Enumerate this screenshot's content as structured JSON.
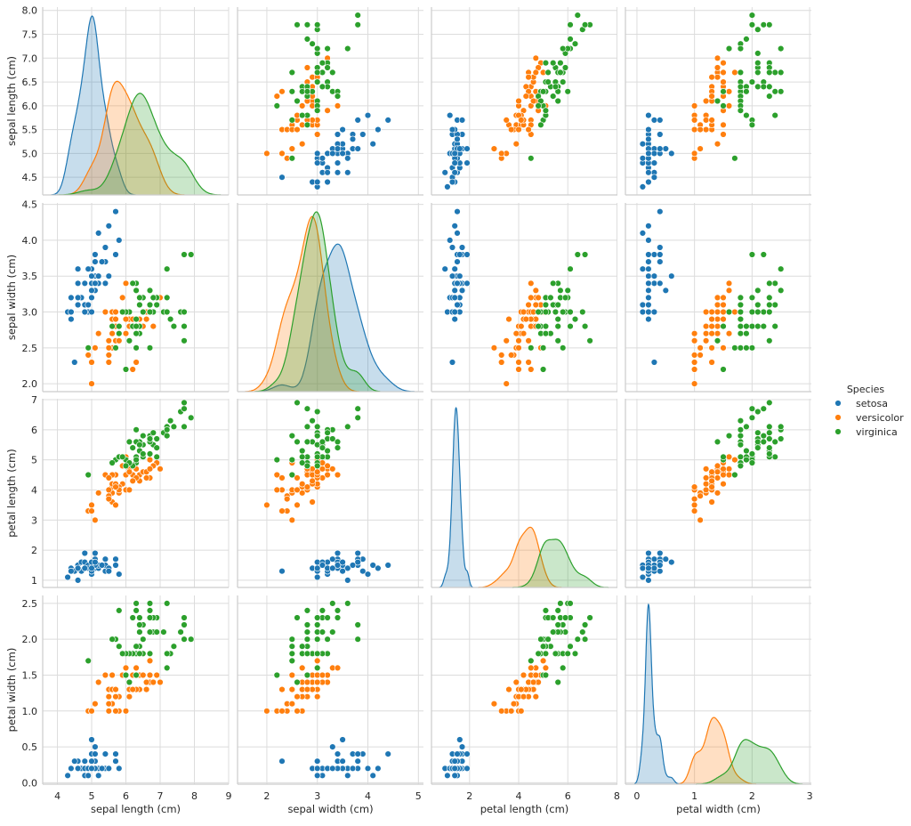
{
  "chart_data": {
    "type": "scatter_matrix",
    "diag_kind": "kde",
    "grid": true,
    "variables": [
      {
        "label": "sepal length (cm)",
        "xticks": [
          "4",
          "5",
          "6",
          "7",
          "8",
          "9"
        ],
        "xtick_values": [
          4,
          5,
          6,
          7,
          8,
          9
        ],
        "xlim": [
          3.57,
          9.0
        ],
        "yticks": [
          "4.5",
          "5.0",
          "5.5",
          "6.0",
          "6.5",
          "7.0",
          "7.5",
          "8.0"
        ],
        "ytick_values": [
          4.5,
          5.0,
          5.5,
          6.0,
          6.5,
          7.0,
          7.5,
          8.0
        ],
        "ylim": [
          4.13,
          8.07
        ]
      },
      {
        "label": "sepal width (cm)",
        "xticks": [
          "2",
          "3",
          "4",
          "5"
        ],
        "xtick_values": [
          2,
          3,
          4,
          5
        ],
        "xlim": [
          1.42,
          5.1
        ],
        "yticks": [
          "2.0",
          "2.5",
          "3.0",
          "3.5",
          "4.0",
          "4.5"
        ],
        "ytick_values": [
          2.0,
          2.5,
          3.0,
          3.5,
          4.0,
          4.5
        ],
        "ylim": [
          1.89,
          4.52
        ]
      },
      {
        "label": "petal length (cm)",
        "xticks": [
          "2",
          "4",
          "6",
          "8"
        ],
        "xtick_values": [
          2,
          4,
          6,
          8
        ],
        "xlim": [
          0.45,
          8.02
        ],
        "yticks": [
          "1",
          "2",
          "3",
          "4",
          "5",
          "6",
          "7"
        ],
        "ytick_values": [
          1,
          2,
          3,
          4,
          5,
          6,
          7
        ],
        "ylim": [
          0.76,
          7.03
        ]
      },
      {
        "label": "petal width (cm)",
        "xticks": [
          "0",
          "1",
          "2",
          "3"
        ],
        "xtick_values": [
          0,
          1,
          2,
          3
        ],
        "xlim": [
          -0.2,
          3.03
        ],
        "yticks": [
          "0.0",
          "0.5",
          "1.0",
          "1.5",
          "2.0",
          "2.5"
        ],
        "ytick_values": [
          0.0,
          0.5,
          1.0,
          1.5,
          2.0,
          2.5
        ],
        "ylim": [
          -0.02,
          2.61
        ]
      }
    ],
    "legend": {
      "title": "Species",
      "placement": "right"
    },
    "series": [
      {
        "name": "setosa",
        "color": "#1f77b4",
        "rows": [
          [
            5.1,
            3.5,
            1.4,
            0.2
          ],
          [
            4.9,
            3.0,
            1.4,
            0.2
          ],
          [
            4.7,
            3.2,
            1.3,
            0.2
          ],
          [
            4.6,
            3.1,
            1.5,
            0.2
          ],
          [
            5.0,
            3.6,
            1.4,
            0.2
          ],
          [
            5.4,
            3.9,
            1.7,
            0.4
          ],
          [
            4.6,
            3.4,
            1.4,
            0.3
          ],
          [
            5.0,
            3.4,
            1.5,
            0.2
          ],
          [
            4.4,
            2.9,
            1.4,
            0.2
          ],
          [
            4.9,
            3.1,
            1.5,
            0.1
          ],
          [
            5.4,
            3.7,
            1.5,
            0.2
          ],
          [
            4.8,
            3.4,
            1.6,
            0.2
          ],
          [
            4.8,
            3.0,
            1.4,
            0.1
          ],
          [
            4.3,
            3.0,
            1.1,
            0.1
          ],
          [
            5.8,
            4.0,
            1.2,
            0.2
          ],
          [
            5.7,
            4.4,
            1.5,
            0.4
          ],
          [
            5.4,
            3.9,
            1.3,
            0.4
          ],
          [
            5.1,
            3.5,
            1.4,
            0.3
          ],
          [
            5.7,
            3.8,
            1.7,
            0.3
          ],
          [
            5.1,
            3.8,
            1.5,
            0.3
          ],
          [
            5.4,
            3.4,
            1.7,
            0.2
          ],
          [
            5.1,
            3.7,
            1.5,
            0.4
          ],
          [
            4.6,
            3.6,
            1.0,
            0.2
          ],
          [
            5.1,
            3.3,
            1.7,
            0.5
          ],
          [
            4.8,
            3.4,
            1.9,
            0.2
          ],
          [
            5.0,
            3.0,
            1.6,
            0.2
          ],
          [
            5.0,
            3.4,
            1.6,
            0.4
          ],
          [
            5.2,
            3.5,
            1.5,
            0.2
          ],
          [
            5.2,
            3.4,
            1.4,
            0.2
          ],
          [
            4.7,
            3.2,
            1.6,
            0.2
          ],
          [
            4.8,
            3.1,
            1.6,
            0.2
          ],
          [
            5.4,
            3.4,
            1.5,
            0.4
          ],
          [
            5.2,
            4.1,
            1.5,
            0.1
          ],
          [
            5.5,
            4.2,
            1.4,
            0.2
          ],
          [
            4.9,
            3.1,
            1.5,
            0.2
          ],
          [
            5.0,
            3.2,
            1.2,
            0.2
          ],
          [
            5.5,
            3.5,
            1.3,
            0.2
          ],
          [
            4.9,
            3.6,
            1.4,
            0.1
          ],
          [
            4.4,
            3.0,
            1.3,
            0.2
          ],
          [
            5.1,
            3.4,
            1.5,
            0.2
          ],
          [
            5.0,
            3.5,
            1.3,
            0.3
          ],
          [
            4.5,
            2.3,
            1.3,
            0.3
          ],
          [
            4.4,
            3.2,
            1.3,
            0.2
          ],
          [
            5.0,
            3.5,
            1.6,
            0.6
          ],
          [
            5.1,
            3.8,
            1.9,
            0.4
          ],
          [
            4.8,
            3.0,
            1.4,
            0.3
          ],
          [
            5.1,
            3.8,
            1.6,
            0.2
          ],
          [
            4.6,
            3.2,
            1.4,
            0.2
          ],
          [
            5.3,
            3.7,
            1.5,
            0.2
          ],
          [
            5.0,
            3.3,
            1.4,
            0.2
          ]
        ]
      },
      {
        "name": "versicolor",
        "color": "#ff7f0e",
        "rows": [
          [
            7.0,
            3.2,
            4.7,
            1.4
          ],
          [
            6.4,
            3.2,
            4.5,
            1.5
          ],
          [
            6.9,
            3.1,
            4.9,
            1.5
          ],
          [
            5.5,
            2.3,
            4.0,
            1.3
          ],
          [
            6.5,
            2.8,
            4.6,
            1.5
          ],
          [
            5.7,
            2.8,
            4.5,
            1.3
          ],
          [
            6.3,
            3.3,
            4.7,
            1.6
          ],
          [
            4.9,
            2.4,
            3.3,
            1.0
          ],
          [
            6.6,
            2.9,
            4.6,
            1.3
          ],
          [
            5.2,
            2.7,
            3.9,
            1.4
          ],
          [
            5.0,
            2.0,
            3.5,
            1.0
          ],
          [
            5.9,
            3.0,
            4.2,
            1.5
          ],
          [
            6.0,
            2.2,
            4.0,
            1.0
          ],
          [
            6.1,
            2.9,
            4.7,
            1.4
          ],
          [
            5.6,
            2.9,
            3.6,
            1.3
          ],
          [
            6.7,
            3.1,
            4.4,
            1.4
          ],
          [
            5.6,
            3.0,
            4.5,
            1.5
          ],
          [
            5.8,
            2.7,
            4.1,
            1.0
          ],
          [
            6.2,
            2.2,
            4.5,
            1.5
          ],
          [
            5.6,
            2.5,
            3.9,
            1.1
          ],
          [
            5.9,
            3.2,
            4.8,
            1.8
          ],
          [
            6.1,
            2.8,
            4.0,
            1.3
          ],
          [
            6.3,
            2.5,
            4.9,
            1.5
          ],
          [
            6.1,
            2.8,
            4.7,
            1.2
          ],
          [
            6.4,
            2.9,
            4.3,
            1.3
          ],
          [
            6.6,
            3.0,
            4.4,
            1.4
          ],
          [
            6.8,
            2.8,
            4.8,
            1.4
          ],
          [
            6.7,
            3.0,
            5.0,
            1.7
          ],
          [
            6.0,
            2.9,
            4.5,
            1.5
          ],
          [
            5.7,
            2.6,
            3.5,
            1.0
          ],
          [
            5.5,
            2.4,
            3.8,
            1.1
          ],
          [
            5.5,
            2.4,
            3.7,
            1.0
          ],
          [
            5.8,
            2.7,
            3.9,
            1.2
          ],
          [
            6.0,
            2.7,
            5.1,
            1.6
          ],
          [
            5.4,
            3.0,
            4.5,
            1.5
          ],
          [
            6.0,
            3.4,
            4.5,
            1.6
          ],
          [
            6.7,
            3.1,
            4.7,
            1.5
          ],
          [
            6.3,
            2.3,
            4.4,
            1.3
          ],
          [
            5.6,
            3.0,
            4.1,
            1.3
          ],
          [
            5.5,
            2.5,
            4.0,
            1.3
          ],
          [
            5.5,
            2.6,
            4.4,
            1.2
          ],
          [
            6.1,
            3.0,
            4.6,
            1.4
          ],
          [
            5.8,
            2.6,
            4.0,
            1.2
          ],
          [
            5.0,
            2.3,
            3.3,
            1.0
          ],
          [
            5.6,
            2.7,
            4.2,
            1.3
          ],
          [
            5.7,
            3.0,
            4.2,
            1.2
          ],
          [
            5.7,
            2.9,
            4.2,
            1.3
          ],
          [
            6.2,
            2.9,
            4.3,
            1.3
          ],
          [
            5.1,
            2.5,
            3.0,
            1.1
          ],
          [
            5.7,
            2.8,
            4.1,
            1.3
          ]
        ]
      },
      {
        "name": "virginica",
        "color": "#2ca02c",
        "rows": [
          [
            6.3,
            3.3,
            6.0,
            2.5
          ],
          [
            5.8,
            2.7,
            5.1,
            1.9
          ],
          [
            7.1,
            3.0,
            5.9,
            2.1
          ],
          [
            6.3,
            2.9,
            5.6,
            1.8
          ],
          [
            6.5,
            3.0,
            5.8,
            2.2
          ],
          [
            7.6,
            3.0,
            6.6,
            2.1
          ],
          [
            4.9,
            2.5,
            4.5,
            1.7
          ],
          [
            7.3,
            2.9,
            6.3,
            1.8
          ],
          [
            6.7,
            2.5,
            5.8,
            1.8
          ],
          [
            7.2,
            3.6,
            6.1,
            2.5
          ],
          [
            6.5,
            3.2,
            5.1,
            2.0
          ],
          [
            6.4,
            2.7,
            5.3,
            1.9
          ],
          [
            6.8,
            3.0,
            5.5,
            2.1
          ],
          [
            5.7,
            2.5,
            5.0,
            2.0
          ],
          [
            5.8,
            2.8,
            5.1,
            2.4
          ],
          [
            6.4,
            3.2,
            5.3,
            2.3
          ],
          [
            6.5,
            3.0,
            5.5,
            1.8
          ],
          [
            7.7,
            3.8,
            6.7,
            2.2
          ],
          [
            7.7,
            2.6,
            6.9,
            2.3
          ],
          [
            6.0,
            2.2,
            5.0,
            1.5
          ],
          [
            6.9,
            3.2,
            5.7,
            2.3
          ],
          [
            5.6,
            2.8,
            4.9,
            2.0
          ],
          [
            7.7,
            2.8,
            6.7,
            2.0
          ],
          [
            6.3,
            2.7,
            4.9,
            1.8
          ],
          [
            6.7,
            3.3,
            5.7,
            2.1
          ],
          [
            7.2,
            3.2,
            6.0,
            1.8
          ],
          [
            6.2,
            2.8,
            4.8,
            1.8
          ],
          [
            6.1,
            3.0,
            4.9,
            1.8
          ],
          [
            6.4,
            2.8,
            5.6,
            2.1
          ],
          [
            7.2,
            3.0,
            5.8,
            1.6
          ],
          [
            7.4,
            2.8,
            6.1,
            1.9
          ],
          [
            7.9,
            3.8,
            6.4,
            2.0
          ],
          [
            6.4,
            2.8,
            5.6,
            2.2
          ],
          [
            6.3,
            2.8,
            5.1,
            1.5
          ],
          [
            6.1,
            2.6,
            5.6,
            1.4
          ],
          [
            7.7,
            3.0,
            6.1,
            2.3
          ],
          [
            6.3,
            3.4,
            5.6,
            2.4
          ],
          [
            6.4,
            3.1,
            5.5,
            1.8
          ],
          [
            6.0,
            3.0,
            4.8,
            1.8
          ],
          [
            6.9,
            3.1,
            5.4,
            2.1
          ],
          [
            6.7,
            3.1,
            5.6,
            2.4
          ],
          [
            6.9,
            3.1,
            5.1,
            2.3
          ],
          [
            5.8,
            2.7,
            5.1,
            1.9
          ],
          [
            6.8,
            3.2,
            5.9,
            2.3
          ],
          [
            6.7,
            3.3,
            5.7,
            2.5
          ],
          [
            6.7,
            3.0,
            5.2,
            2.3
          ],
          [
            6.3,
            2.5,
            5.0,
            1.9
          ],
          [
            6.5,
            3.0,
            5.2,
            2.0
          ],
          [
            6.2,
            3.4,
            5.4,
            2.3
          ],
          [
            5.9,
            3.0,
            5.1,
            1.8
          ]
        ]
      }
    ]
  }
}
